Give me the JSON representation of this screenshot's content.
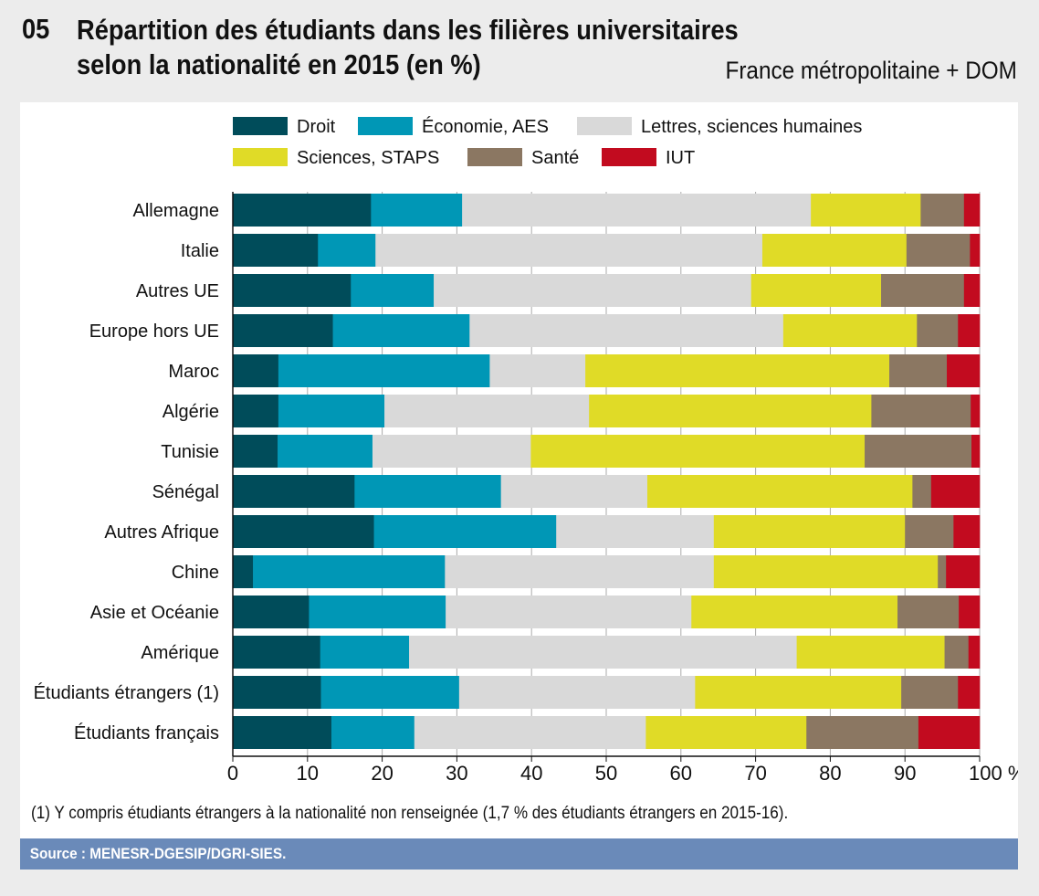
{
  "header": {
    "number": "05",
    "title_line1": "Répartition des étudiants dans les filières universitaires",
    "title_line2": "selon la nationalité en 2015 (en %)",
    "scope": "France métropolitaine + DOM"
  },
  "footnote": "(1)  Y compris étudiants étrangers à la nationalité non renseignée (1,7 % des étudiants étrangers en 2015-16).",
  "source": "Source : MENESR-DGESIP/DGRI-SIES.",
  "chart_data": {
    "type": "bar",
    "orientation": "horizontal",
    "stacked": true,
    "categories": [
      "Allemagne",
      "Italie",
      "Autres UE",
      "Europe hors UE",
      "Maroc",
      "Algérie",
      "Tunisie",
      "Sénégal",
      "Autres Afrique",
      "Chine",
      "Asie et Océanie",
      "Amérique",
      "Étudiants étrangers (1)",
      "Étudiants français"
    ],
    "series": [
      {
        "name": "Droit",
        "color": "#004c5a",
        "values": [
          18.5,
          11.4,
          15.8,
          13.4,
          6.1,
          6.1,
          6.0,
          16.3,
          18.9,
          2.7,
          10.2,
          11.7,
          11.8,
          13.2
        ]
      },
      {
        "name": "Économie, AES",
        "color": "#0097b6",
        "values": [
          12.2,
          7.7,
          11.1,
          18.3,
          28.3,
          14.2,
          12.7,
          19.6,
          24.4,
          25.7,
          18.3,
          11.9,
          18.5,
          11.1
        ]
      },
      {
        "name": "Lettres, sciences humaines",
        "color": "#d9d9d9",
        "values": [
          46.7,
          51.8,
          42.5,
          42.0,
          12.8,
          27.4,
          21.2,
          19.6,
          21.1,
          36.0,
          32.9,
          51.9,
          31.6,
          31.0
        ]
      },
      {
        "name": "Sciences, STAPS",
        "color": "#e0db27",
        "values": [
          14.7,
          19.3,
          17.4,
          17.9,
          40.7,
          37.8,
          44.7,
          35.5,
          25.6,
          30.0,
          27.6,
          19.8,
          27.6,
          21.5
        ]
      },
      {
        "name": "Santé",
        "color": "#8b7762",
        "values": [
          5.8,
          8.5,
          11.1,
          5.5,
          7.7,
          13.3,
          14.3,
          2.5,
          6.5,
          1.1,
          8.2,
          3.2,
          7.6,
          15.0
        ]
      },
      {
        "name": "IUT",
        "color": "#c20b1f",
        "values": [
          2.1,
          1.3,
          2.1,
          2.9,
          4.4,
          1.2,
          1.1,
          6.5,
          3.5,
          4.5,
          2.8,
          1.5,
          2.9,
          8.2
        ]
      }
    ],
    "xlim": [
      0,
      100
    ],
    "xticks": [
      "0",
      "10",
      "20",
      "30",
      "40",
      "50",
      "60",
      "70",
      "80",
      "90",
      "100 %"
    ],
    "grid": true,
    "legend_placement": "top"
  }
}
